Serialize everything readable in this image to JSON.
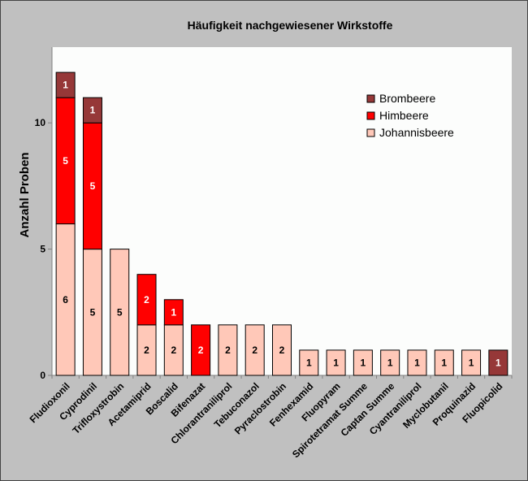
{
  "chart_data": {
    "type": "bar",
    "stacked": true,
    "title": "Häufigkeit nachgewiesener Wirkstoffe",
    "xlabel": "",
    "ylabel": "Anzahl Proben",
    "ylim": [
      0,
      13
    ],
    "yticks": [
      0,
      5,
      10
    ],
    "grid": false,
    "legend_position": "top-right",
    "categories": [
      "Fludioxonil",
      "Cyprodinil",
      "Trifloxystrobin",
      "Acetamiprid",
      "Boscalid",
      "Bifenazat",
      "Chlorantraniliprol",
      "Tebuconazol",
      "Pyraclostrobin",
      "Fenhexamid",
      "Fluopyram",
      "Spirotetramat Summe",
      "Captan Summe",
      "Cyantraniliprol",
      "Myclobutanil",
      "Proquinazid",
      "Fluopicolid"
    ],
    "series": [
      {
        "name": "Johannisbeere",
        "color": "#ffc8b8",
        "label_color": "#000000",
        "values": [
          6,
          5,
          5,
          2,
          2,
          0,
          2,
          2,
          2,
          1,
          1,
          1,
          1,
          1,
          1,
          1,
          0
        ]
      },
      {
        "name": "Himbeere",
        "color": "#ff0000",
        "label_color": "#ffffff",
        "values": [
          5,
          5,
          0,
          2,
          1,
          2,
          0,
          0,
          0,
          0,
          0,
          0,
          0,
          0,
          0,
          0,
          0
        ]
      },
      {
        "name": "Brombeere",
        "color": "#963838",
        "label_color": "#ffffff",
        "values": [
          1,
          1,
          0,
          0,
          0,
          0,
          0,
          0,
          0,
          0,
          0,
          0,
          0,
          0,
          0,
          0,
          1
        ]
      }
    ],
    "legend_order": [
      "Brombeere",
      "Himbeere",
      "Johannisbeere"
    ]
  }
}
